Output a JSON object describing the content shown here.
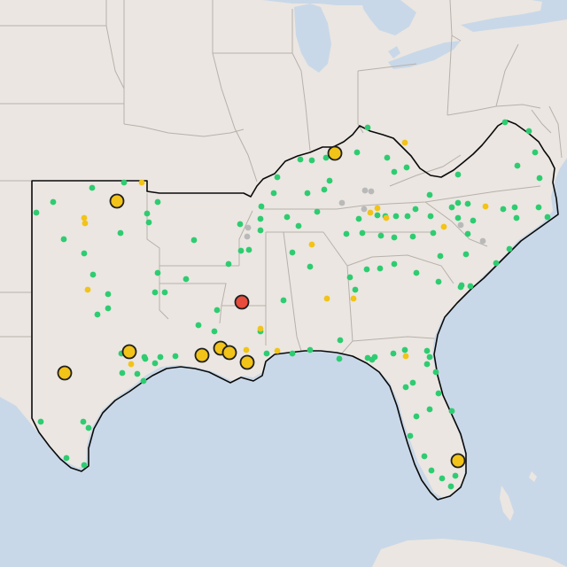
{
  "map": {
    "colors": {
      "land": "#ebe6e1",
      "water": "#c9d8e8",
      "state_border": "#b7b1ab",
      "region_outline": "#0a0a0a",
      "marker_green": "#2ecc71",
      "marker_yellow": "#f2c318",
      "marker_gray": "#b9b9b9",
      "marker_red": "#e74c3c",
      "marker_stroke": "#1f1f1f"
    },
    "legend": [],
    "markers": {
      "red_large": [
        [
          273,
          341
        ]
      ],
      "yellow_large": [
        [
          378,
          173
        ],
        [
          132,
          227
        ],
        [
          146,
          397
        ],
        [
          73,
          421
        ],
        [
          228,
          401
        ],
        [
          249,
          393
        ],
        [
          259,
          398
        ],
        [
          279,
          409
        ],
        [
          517,
          520
        ]
      ],
      "yellow_small": [
        [
          160,
          206
        ],
        [
          95,
          246
        ],
        [
          96,
          252
        ],
        [
          99,
          327
        ],
        [
          148,
          411
        ],
        [
          313,
          396
        ],
        [
          294,
          371
        ],
        [
          278,
          395
        ],
        [
          352,
          276
        ],
        [
          369,
          337
        ],
        [
          399,
          337
        ],
        [
          426,
          235
        ],
        [
          436,
          246
        ],
        [
          457,
          161
        ],
        [
          548,
          233
        ],
        [
          501,
          256
        ],
        [
          458,
          402
        ],
        [
          418,
          240
        ]
      ],
      "gray_small": [
        [
          386,
          229
        ],
        [
          411,
          236
        ],
        [
          279,
          267
        ],
        [
          280,
          257
        ],
        [
          545,
          272
        ],
        [
          412,
          215
        ],
        [
          419,
          216
        ],
        [
          520,
          254
        ]
      ],
      "green_small": [
        [
          41,
          240
        ],
        [
          60,
          228
        ],
        [
          72,
          270
        ],
        [
          95,
          286
        ],
        [
          104,
          212
        ],
        [
          140,
          206
        ],
        [
          166,
          241
        ],
        [
          168,
          251
        ],
        [
          178,
          228
        ],
        [
          136,
          263
        ],
        [
          110,
          355
        ],
        [
          122,
          332
        ],
        [
          105,
          310
        ],
        [
          122,
          348
        ],
        [
          178,
          308
        ],
        [
          175,
          330
        ],
        [
          210,
          315
        ],
        [
          186,
          330
        ],
        [
          219,
          271
        ],
        [
          271,
          253
        ],
        [
          295,
          233
        ],
        [
          294,
          247
        ],
        [
          294,
          260
        ],
        [
          258,
          298
        ],
        [
          272,
          283
        ],
        [
          281,
          282
        ],
        [
          309,
          218
        ],
        [
          324,
          245
        ],
        [
          313,
          200
        ],
        [
          339,
          180
        ],
        [
          352,
          181
        ],
        [
          368,
          178
        ],
        [
          372,
          204
        ],
        [
          347,
          218
        ],
        [
          358,
          239
        ],
        [
          405,
          247
        ],
        [
          409,
          263
        ],
        [
          426,
          243
        ],
        [
          435,
          244
        ],
        [
          447,
          244
        ],
        [
          460,
          244
        ],
        [
          469,
          236
        ],
        [
          486,
          244
        ],
        [
          510,
          234
        ],
        [
          517,
          246
        ],
        [
          528,
          230
        ],
        [
          528,
          264
        ],
        [
          489,
          263
        ],
        [
          466,
          267
        ],
        [
          445,
          268
        ],
        [
          430,
          266
        ],
        [
          485,
          220
        ],
        [
          517,
          229
        ],
        [
          534,
          249
        ],
        [
          568,
          236
        ],
        [
          581,
          234
        ],
        [
          583,
          246
        ],
        [
          608,
          234
        ],
        [
          618,
          245
        ],
        [
          609,
          201
        ],
        [
          584,
          187
        ],
        [
          597,
          148
        ],
        [
          570,
          138
        ],
        [
          604,
          172
        ],
        [
          517,
          197
        ],
        [
          445,
          194
        ],
        [
          459,
          189
        ],
        [
          437,
          178
        ],
        [
          415,
          144
        ],
        [
          403,
          172
        ],
        [
          366,
          214
        ],
        [
          391,
          264
        ],
        [
          395,
          313
        ],
        [
          401,
          327
        ],
        [
          414,
          304
        ],
        [
          429,
          303
        ],
        [
          445,
          298
        ],
        [
          470,
          308
        ],
        [
          497,
          289
        ],
        [
          526,
          287
        ],
        [
          521,
          322
        ],
        [
          531,
          323
        ],
        [
          575,
          281
        ],
        [
          560,
          297
        ],
        [
          495,
          318
        ],
        [
          520,
          324
        ],
        [
          330,
          285
        ],
        [
          350,
          301
        ],
        [
          337,
          255
        ],
        [
          320,
          339
        ],
        [
          384,
          384
        ],
        [
          350,
          395
        ],
        [
          330,
          399
        ],
        [
          301,
          399
        ],
        [
          294,
          374
        ],
        [
          383,
          405
        ],
        [
          415,
          404
        ],
        [
          420,
          406
        ],
        [
          423,
          403
        ],
        [
          444,
          399
        ],
        [
          457,
          395
        ],
        [
          482,
          396
        ],
        [
          485,
          403
        ],
        [
          482,
          411
        ],
        [
          458,
          437
        ],
        [
          466,
          432
        ],
        [
          492,
          420
        ],
        [
          495,
          444
        ],
        [
          485,
          462
        ],
        [
          470,
          470
        ],
        [
          479,
          515
        ],
        [
          463,
          492
        ],
        [
          510,
          464
        ],
        [
          499,
          540
        ],
        [
          514,
          537
        ],
        [
          509,
          549
        ],
        [
          487,
          531
        ],
        [
          245,
          350
        ],
        [
          224,
          367
        ],
        [
          242,
          374
        ],
        [
          198,
          402
        ],
        [
          181,
          403
        ],
        [
          175,
          410
        ],
        [
          164,
          405
        ],
        [
          155,
          422
        ],
        [
          162,
          430
        ],
        [
          138,
          421
        ],
        [
          94,
          476
        ],
        [
          100,
          483
        ],
        [
          75,
          517
        ],
        [
          95,
          525
        ],
        [
          46,
          476
        ],
        [
          137,
          399
        ],
        [
          163,
          403
        ]
      ]
    }
  }
}
